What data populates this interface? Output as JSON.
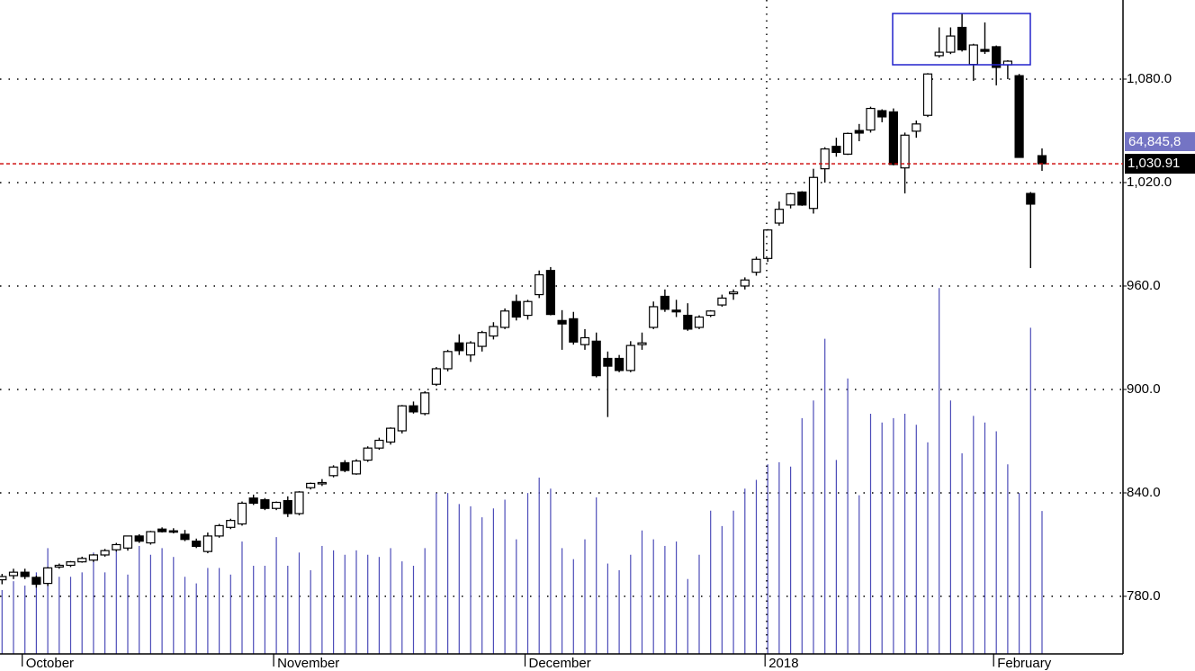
{
  "chart_data": {
    "type": "candlestick",
    "categories": [
      null,
      null,
      "October",
      null,
      null,
      null,
      null,
      null,
      null,
      null,
      null,
      null,
      null,
      null,
      null,
      null,
      null,
      null,
      null,
      null,
      null,
      null,
      null,
      null,
      "November",
      null,
      null,
      null,
      null,
      null,
      null,
      null,
      null,
      null,
      null,
      null,
      null,
      null,
      null,
      null,
      null,
      null,
      null,
      null,
      null,
      null,
      "December",
      null,
      null,
      null,
      null,
      null,
      null,
      null,
      null,
      null,
      null,
      null,
      null,
      null,
      null,
      null,
      null,
      null,
      null,
      null,
      null,
      "2018",
      null,
      null,
      null,
      null,
      null,
      null,
      null,
      null,
      null,
      null,
      null,
      null,
      null,
      null,
      null,
      null,
      null,
      null,
      null,
      "February",
      null,
      null,
      null,
      null
    ],
    "open": [
      789.6,
      792.0,
      794.0,
      791.0,
      787.5,
      797.0,
      798.0,
      800.0,
      801.0,
      804.0,
      807.0,
      808.0,
      815.0,
      811.0,
      819.0,
      818.0,
      816.0,
      812.0,
      806.0,
      815.0,
      820.0,
      822.0,
      837.0,
      836.0,
      831.0,
      835.5,
      828.0,
      843.0,
      845.5,
      850.0,
      857.5,
      851.0,
      859.0,
      866.0,
      869.5,
      876.0,
      890.5,
      886.0,
      903.0,
      912.0,
      927.0,
      920.0,
      925.0,
      931.0,
      936.0,
      951.0,
      943.0,
      955.0,
      969.0,
      940.0,
      941.0,
      926.0,
      928.0,
      918.0,
      918.0,
      911.0,
      926.0,
      936.0,
      954.0,
      946.0,
      943.0,
      936.0,
      943.0,
      949.0,
      955.5,
      960.0,
      968.0,
      976.0,
      996.5,
      1007.0,
      1014.5,
      1005.0,
      1028.0,
      1041.0,
      1036.5,
      1050.2,
      1050.5,
      1061.7,
      1061.0,
      1028.5,
      1049.8,
      1059.0,
      1093.6,
      1095.6,
      1110.0,
      1088.5,
      1097.2,
      1098.8,
      1088.3,
      1082.0,
      1013.7,
      1035.6
    ],
    "high": [
      793.0,
      796.0,
      796.0,
      792.0,
      797.0,
      799.0,
      800.5,
      803.0,
      804.5,
      807.5,
      811.0,
      815.0,
      816.0,
      818.0,
      820.0,
      819.5,
      818.5,
      813.5,
      817.0,
      822.0,
      825.0,
      835.0,
      839.0,
      837.0,
      835.0,
      838.0,
      841.0,
      846.0,
      848.0,
      856.0,
      859.0,
      859.5,
      867.0,
      872.0,
      878.0,
      891.0,
      893.0,
      899.0,
      913.0,
      923.0,
      932.0,
      928.0,
      934.0,
      939.0,
      947.0,
      955.0,
      952.0,
      969.0,
      971.0,
      946.0,
      945.0,
      935.0,
      933.0,
      922.0,
      920.0,
      928.0,
      933.0,
      951.0,
      958.0,
      952.0,
      950.0,
      943.0,
      946.0,
      955.0,
      958.0,
      965.0,
      977.0,
      993.0,
      1009.0,
      1014.0,
      1015.0,
      1028.0,
      1040.5,
      1046.0,
      1049.0,
      1054.0,
      1064.0,
      1062.5,
      1063.0,
      1049.0,
      1056.0,
      1083.5,
      1110.0,
      1110.0,
      1118.0,
      1100.5,
      1112.9,
      1099.5,
      1091.0,
      1083.0,
      1014.5,
      1039.8
    ],
    "low": [
      787.0,
      790.0,
      790.0,
      785.0,
      786.0,
      796.0,
      797.0,
      799.5,
      800.0,
      803.0,
      806.0,
      806.5,
      811.0,
      810.0,
      817.0,
      816.5,
      812.0,
      808.0,
      805.0,
      814.0,
      819.0,
      821.0,
      833.0,
      830.0,
      830.0,
      826.0,
      827.0,
      842.0,
      844.0,
      849.0,
      852.0,
      850.5,
      858.0,
      865.0,
      868.0,
      874.5,
      886.0,
      885.0,
      902.0,
      910.5,
      920.0,
      916.0,
      922.0,
      929.0,
      935.0,
      940.0,
      940.5,
      953.0,
      943.0,
      923.0,
      926.0,
      923.0,
      907.0,
      884.0,
      910.0,
      910.0,
      923.0,
      935.0,
      945.0,
      942.0,
      934.0,
      935.0,
      942.0,
      948.0,
      952.0,
      958.0,
      966.0,
      974.0,
      995.0,
      1005.0,
      1006.5,
      1002.0,
      1020.0,
      1035.0,
      1036.0,
      1044.0,
      1049.0,
      1055.0,
      1030.0,
      1013.7,
      1046.0,
      1058.0,
      1092.5,
      1094.5,
      1096.0,
      1079.0,
      1094.6,
      1076.4,
      1080.0,
      1034.5,
      970.4,
      1026.8
    ],
    "close": [
      791.5,
      794.0,
      791.5,
      787.0,
      796.5,
      798.0,
      800.0,
      802.0,
      804.0,
      806.5,
      810.0,
      815.0,
      812.0,
      817.5,
      817.5,
      817.8,
      813.0,
      809.0,
      815.0,
      821.0,
      824.0,
      834.0,
      834.0,
      831.0,
      834.5,
      828.0,
      840.5,
      845.5,
      846.0,
      855.0,
      853.0,
      858.5,
      866.0,
      870.5,
      877.5,
      890.5,
      887.0,
      898.0,
      912.0,
      922.0,
      922.5,
      927.0,
      933.0,
      936.5,
      945.5,
      942.0,
      951.0,
      966.5,
      943.5,
      938.0,
      927.5,
      930.0,
      908.0,
      913.5,
      911.0,
      925.5,
      927.0,
      948.0,
      946.5,
      945.0,
      935.0,
      942.0,
      945.5,
      953.0,
      956.5,
      963.5,
      975.5,
      992.5,
      1004.5,
      1013.5,
      1007.0,
      1023.0,
      1039.5,
      1037.5,
      1048.5,
      1048.7,
      1063.0,
      1058.1,
      1030.5,
      1047.5,
      1054.0,
      1083.0,
      1095.6,
      1105.0,
      1097.0,
      1099.8,
      1096.1,
      1086.8,
      1090.4,
      1034.6,
      1007.5,
      1030.91
    ],
    "volume": [
      29,
      33,
      31,
      37,
      48,
      35,
      35,
      37,
      46,
      37,
      47,
      36,
      49,
      45,
      48,
      44,
      35,
      32,
      39,
      39,
      36,
      51,
      40,
      40,
      53,
      40,
      46,
      38,
      49,
      47,
      45,
      47,
      45,
      44,
      48,
      42,
      40,
      48,
      73,
      73,
      68,
      67,
      62,
      66,
      70,
      52,
      73,
      80,
      75,
      48,
      43,
      52,
      71,
      41,
      38,
      45,
      56,
      52,
      49,
      51,
      34,
      45,
      65,
      58,
      65,
      75,
      79,
      86,
      87,
      85,
      107,
      115,
      143,
      88,
      125,
      72,
      109,
      105,
      107,
      109,
      104,
      96,
      166,
      115,
      91,
      108,
      105,
      101,
      86,
      73,
      148,
      64.8458
    ],
    "up_color": "#ffffff",
    "down_color": "#000000",
    "volume_color": "#4c4cb8",
    "ylim": [
      746.6,
      1125.9
    ],
    "yticks": [
      {
        "value": 780,
        "label": "780.0"
      },
      {
        "value": 840,
        "label": "840.0"
      },
      {
        "value": 900,
        "label": "900.0"
      },
      {
        "value": 960,
        "label": "960.0"
      },
      {
        "value": 1020,
        "label": "1,020.0"
      },
      {
        "value": 1080,
        "label": "1,080.0"
      }
    ],
    "volume_lim": [
      0,
      180
    ],
    "last_price_label": "1,030.91",
    "volume_label": "64,845,8",
    "grid": true
  }
}
